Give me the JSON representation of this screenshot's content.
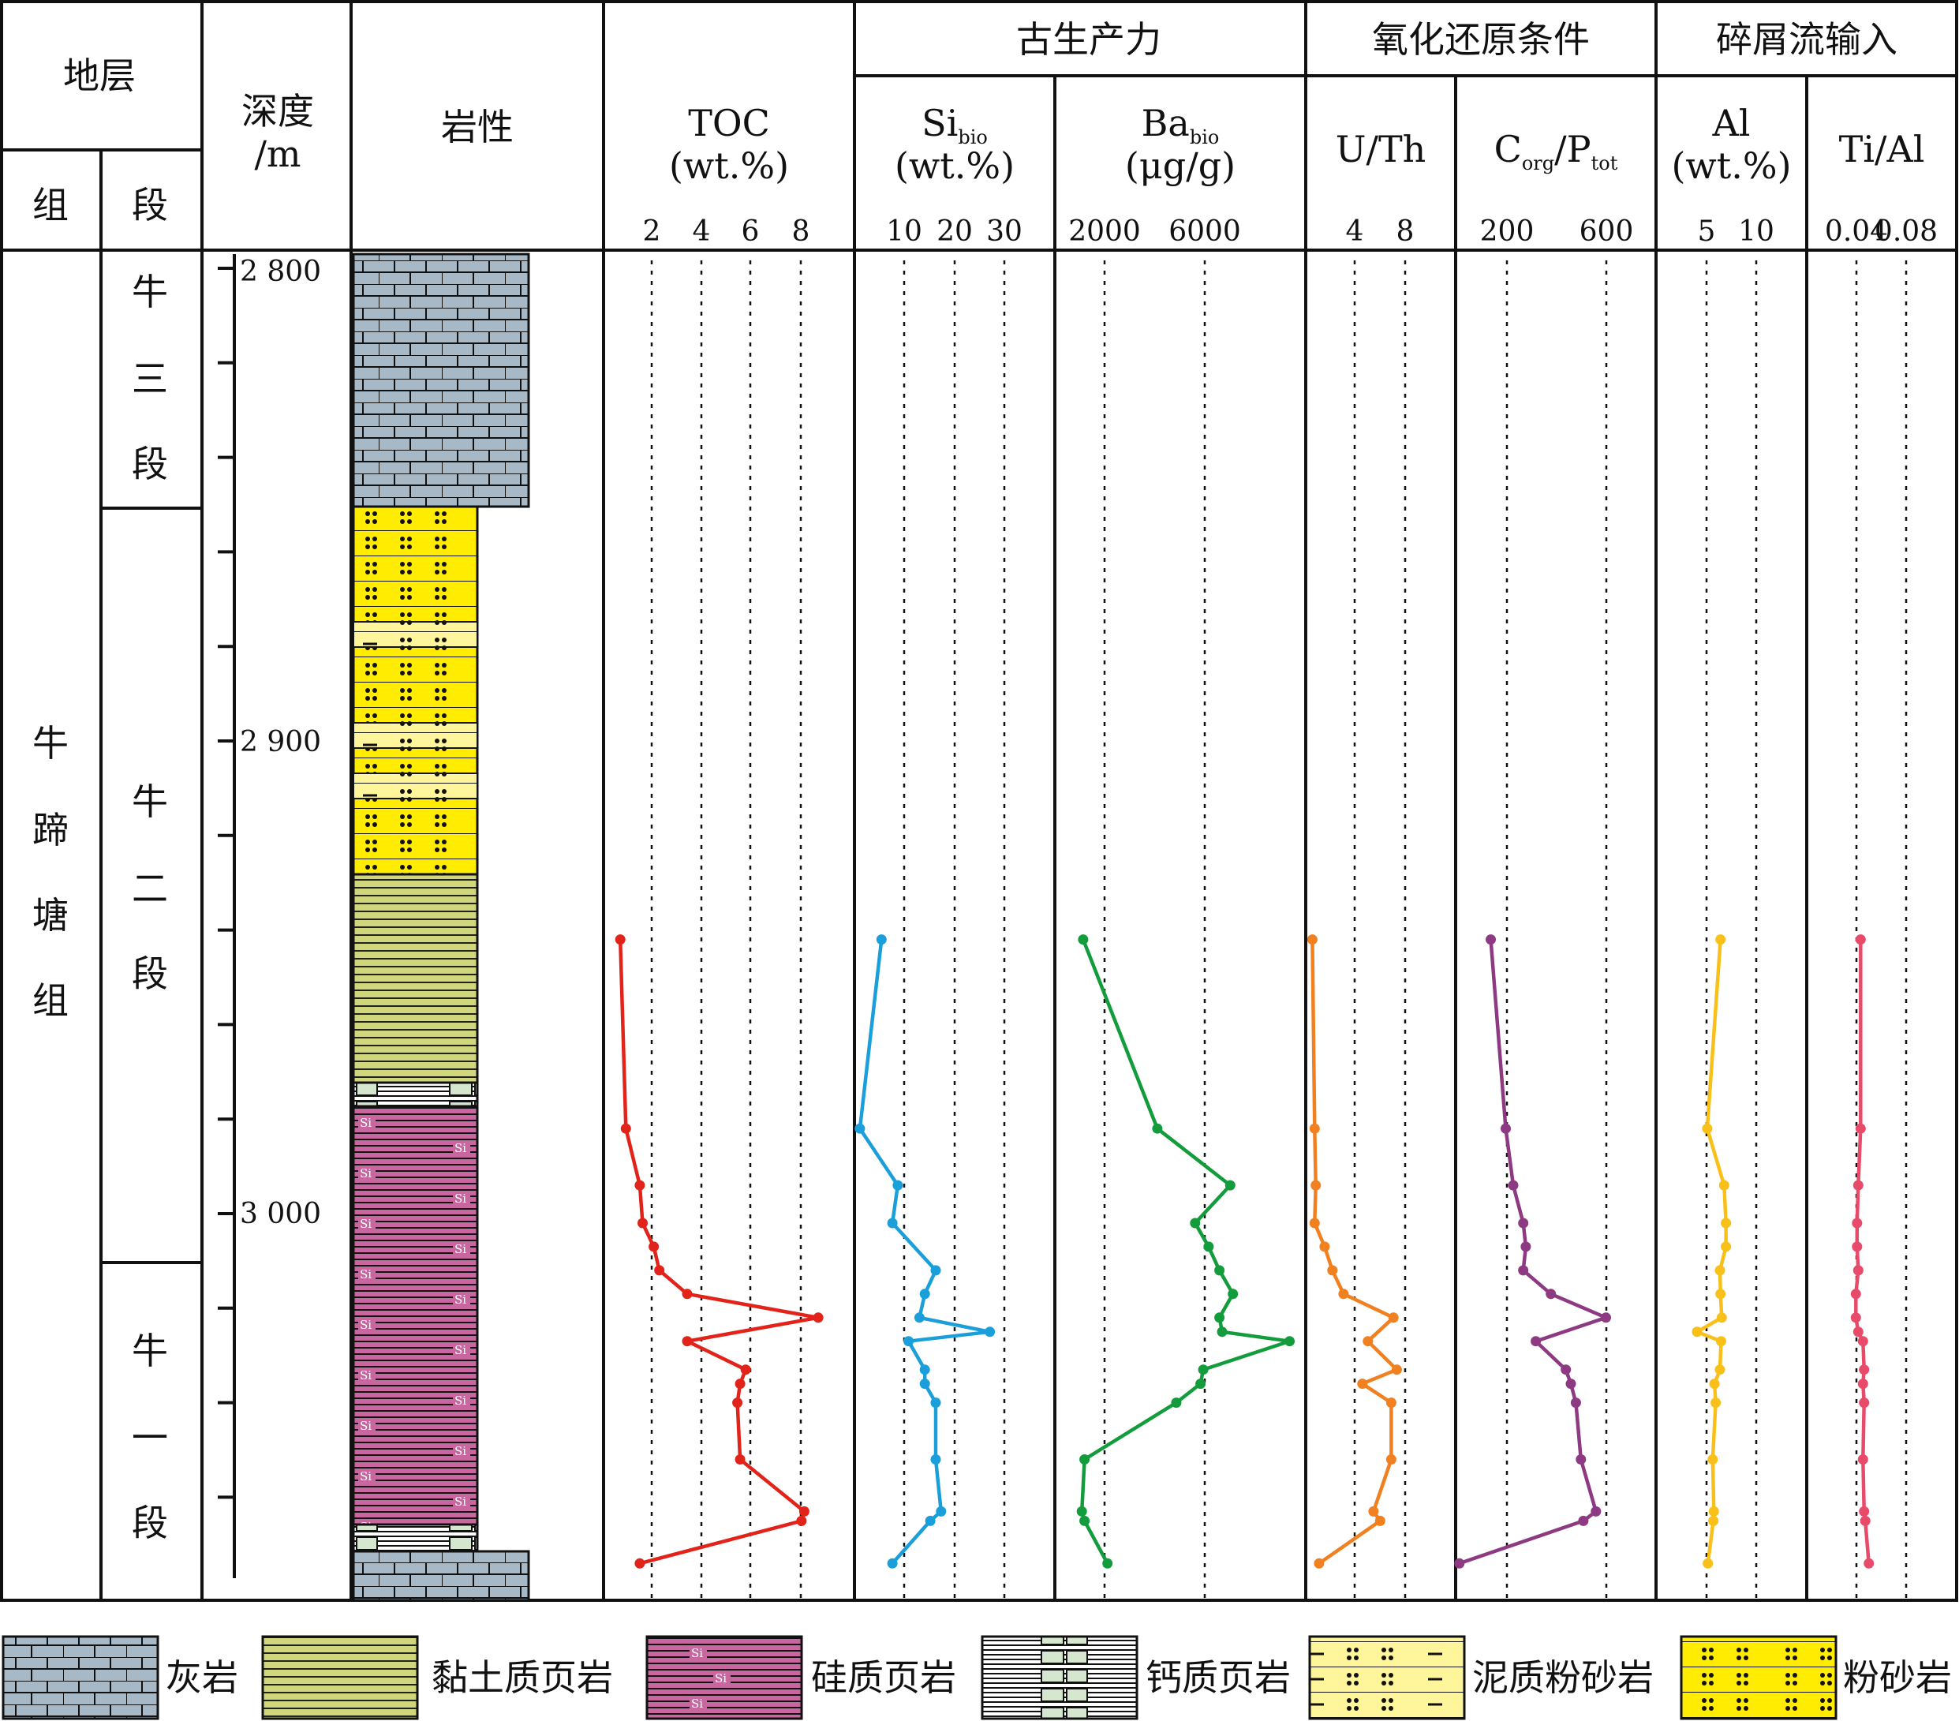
{
  "headers": {
    "strata": "地层",
    "formation": "组",
    "member": "段",
    "depth_line1": "深度",
    "depth_line2": "/m",
    "lithology": "岩性",
    "group_productivity": "古生产力",
    "group_redox": "氧化还原条件",
    "group_detrital": "碎屑流输入"
  },
  "formation_name": [
    "牛",
    "蹄",
    "塘",
    "组"
  ],
  "members": [
    {
      "chars": [
        "牛",
        "三",
        "段"
      ]
    },
    {
      "chars": [
        "牛",
        "二",
        "段"
      ]
    },
    {
      "chars": [
        "牛",
        "一",
        "段"
      ]
    }
  ],
  "depth_labels": [
    "2 800",
    "2 900",
    "3 000"
  ],
  "lithology_legend": [
    {
      "key": "limestone",
      "label": "灰岩",
      "color": "#a7b8c6"
    },
    {
      "key": "clay_shale",
      "label": "黏土质页岩",
      "color": "#cfd67c"
    },
    {
      "key": "siliceous_shale",
      "label": "硅质页岩",
      "color": "#c8679f"
    },
    {
      "key": "calcareous_shale",
      "label": "钙质页岩",
      "color": "#d5e8cf"
    },
    {
      "key": "muddy_siltstone",
      "label": "泥质粉砂岩",
      "color": "#fff59a"
    },
    {
      "key": "siltstone",
      "label": "粉砂岩",
      "color": "#ffec00"
    }
  ],
  "colors": {
    "toc": "#e2231a",
    "si_bio": "#1a9fdb",
    "ba_bio": "#139c3c",
    "u_th": "#f08020",
    "corg_ptot": "#8e3a83",
    "al": "#f9c01a",
    "ti_al": "#e84a6a"
  },
  "chart_data": {
    "type": "line",
    "y_axis": {
      "label": "深度/m",
      "range": [
        2796,
        3073
      ],
      "reversed": true,
      "ticks": [
        2800,
        2900,
        3000
      ]
    },
    "depths": [
      2942,
      2982,
      2994,
      3002,
      3007,
      3012,
      3017,
      3022,
      3025,
      3027,
      3033,
      3036,
      3040,
      3052,
      3063,
      3065,
      3074
    ],
    "panels": [
      {
        "key": "toc",
        "label": "TOC",
        "unit": "(wt.%)",
        "xticks": [
          "2",
          "4",
          "6",
          "8"
        ],
        "xlim": [
          0.5,
          9.5
        ],
        "values": [
          1.1,
          1.3,
          1.8,
          1.9,
          2.3,
          2.5,
          3.5,
          8.2,
          null,
          3.5,
          5.6,
          5.4,
          5.3,
          5.4,
          7.7,
          7.6,
          1.8
        ]
      },
      {
        "key": "si_bio",
        "label": "Si",
        "sub": "bio",
        "unit": "(wt.%)",
        "xticks": [
          "10",
          "20",
          "30"
        ],
        "xlim": [
          0,
          37
        ],
        "values": [
          5,
          1,
          8,
          7,
          null,
          15,
          13,
          12,
          25,
          10,
          13,
          13,
          15,
          15,
          16,
          14,
          7
        ]
      },
      {
        "key": "ba_bio",
        "label": "Ba",
        "sub": "bio",
        "unit": "(μg/g)",
        "xticks": [
          "2000",
          "6000"
        ],
        "xlim": [
          200,
          9500
        ],
        "values": [
          1250,
          4000,
          6700,
          5400,
          5900,
          6300,
          6800,
          6300,
          6400,
          8900,
          5700,
          5600,
          4700,
          1300,
          1200,
          1300,
          2150
        ]
      },
      {
        "key": "u_th",
        "label": "U/Th",
        "unit": "",
        "xticks": [
          "4",
          "8"
        ],
        "xlim": [
          0.5,
          14
        ],
        "values": [
          1.1,
          1.3,
          1.4,
          1.3,
          2.2,
          2.9,
          3.9,
          8.4,
          null,
          6.1,
          8.7,
          5.6,
          8.2,
          8.2,
          6.6,
          7.2,
          1.7
        ]
      },
      {
        "key": "corg_ptot",
        "label": "C",
        "sub": "org",
        "label2": "/P",
        "sub2": "tot",
        "unit": "",
        "xticks": [
          "200",
          "600"
        ],
        "xlim": [
          20,
          820
        ],
        "values": [
          160,
          220,
          250,
          290,
          300,
          290,
          400,
          620,
          null,
          340,
          460,
          480,
          500,
          520,
          580,
          530,
          35
        ]
      },
      {
        "key": "al",
        "label": "Al",
        "unit": "(wt.%)",
        "xticks": [
          "5",
          "10"
        ],
        "xlim": [
          -5,
          20
        ],
        "values": [
          5.7,
          3.5,
          6.3,
          6.6,
          6.6,
          5.6,
          5.7,
          5.9,
          1.8,
          5.8,
          5.6,
          4.7,
          4.9,
          4.4,
          4.6,
          4.5,
          3.6
        ]
      },
      {
        "key": "ti_al",
        "label": "Ti/Al",
        "unit": "",
        "xticks": [
          "0.04",
          "0.08"
        ],
        "xlim": [
          0.022,
          0.15
        ],
        "values": [
          0.068,
          0.068,
          0.066,
          0.065,
          0.065,
          0.066,
          0.064,
          0.064,
          0.066,
          0.07,
          0.071,
          0.07,
          0.071,
          0.07,
          0.071,
          0.072,
          0.075
        ]
      }
    ]
  }
}
